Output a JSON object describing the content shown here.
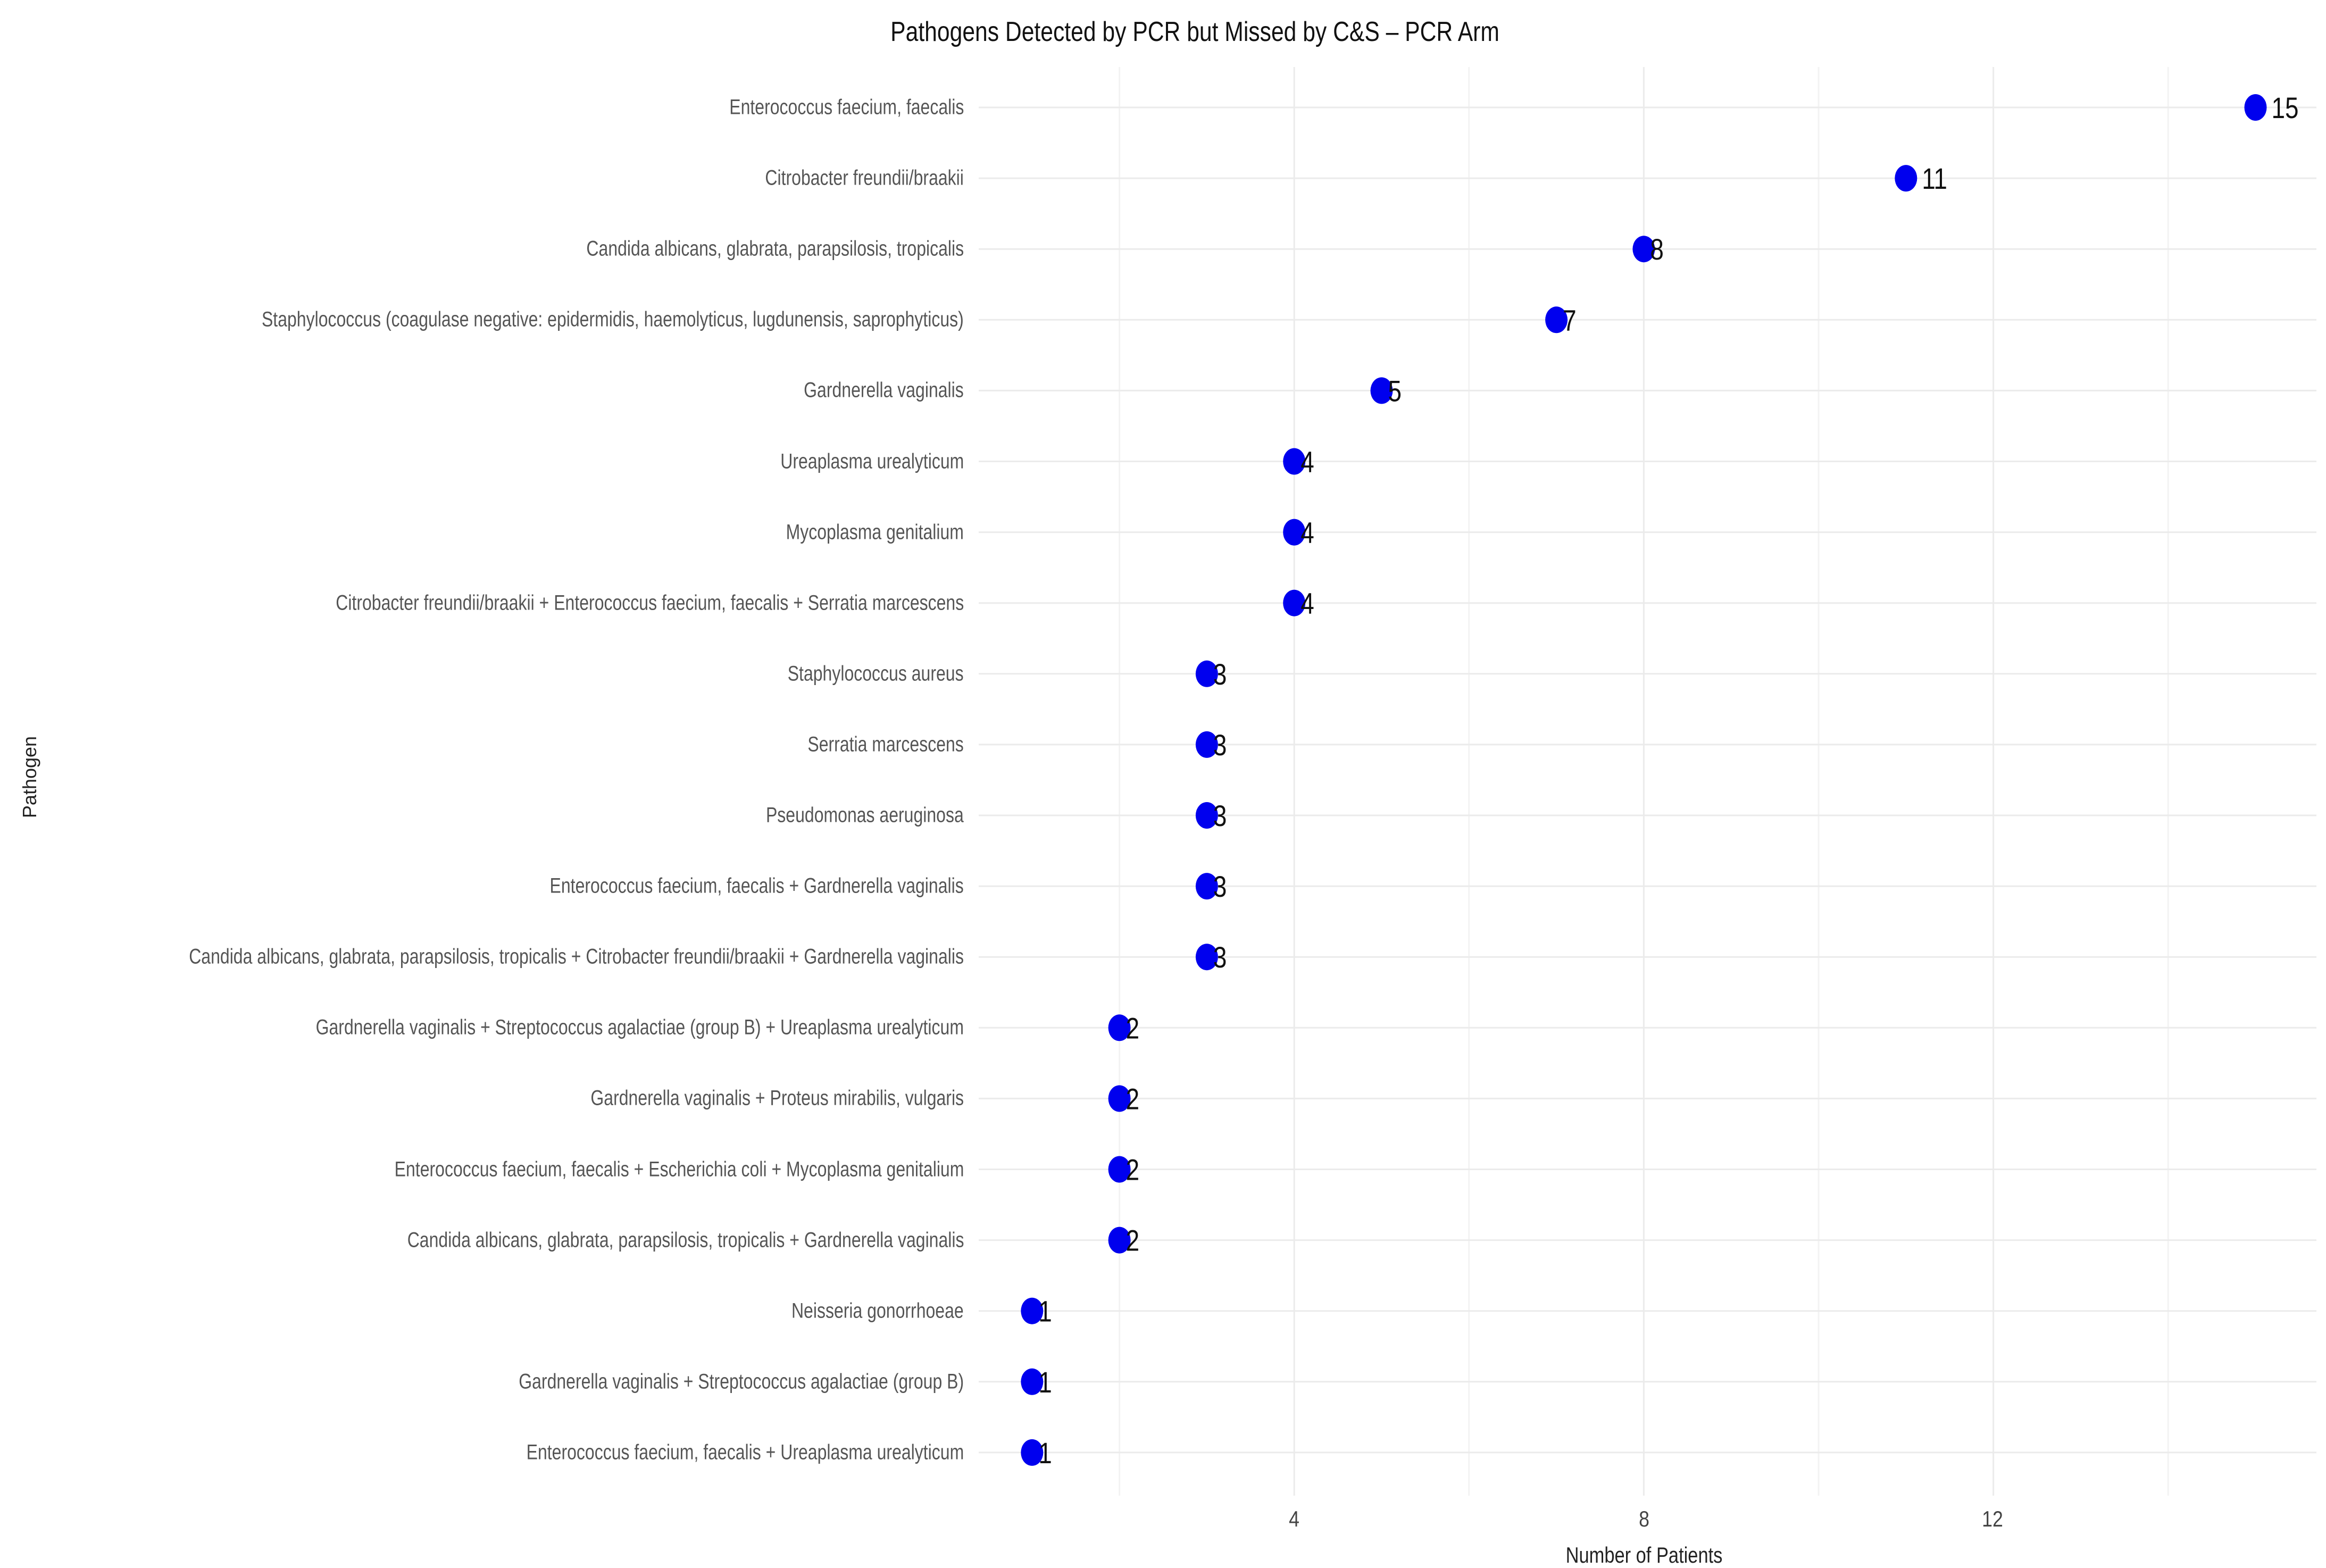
{
  "chart_data": {
    "type": "scatter",
    "subtype": "dot-plot (horizontal, sorted)",
    "title": "Pathogens Detected by PCR but Missed by C&S – PCR Arm",
    "xlabel": "Number of Patients",
    "ylabel": "Pathogen",
    "xlim": [
      1,
      15
    ],
    "x_ticks": [
      4,
      8,
      12
    ],
    "x_minor_gridlines": [
      2,
      6,
      10,
      14
    ],
    "grid": true,
    "legend": null,
    "point_color": "#0000ee",
    "categories": [
      "Enterococcus faecium, faecalis",
      "Citrobacter freundii/braakii",
      "Candida albicans, glabrata, parapsilosis, tropicalis",
      "Staphylococcus (coagulase negative: epidermidis, haemolyticus, lugdunensis, saprophyticus)",
      "Gardnerella vaginalis",
      "Ureaplasma urealyticum",
      "Mycoplasma genitalium",
      "Citrobacter freundii/braakii + Enterococcus faecium, faecalis + Serratia marcescens",
      "Staphylococcus aureus",
      "Serratia marcescens",
      "Pseudomonas aeruginosa",
      "Enterococcus faecium, faecalis + Gardnerella vaginalis",
      "Candida albicans, glabrata, parapsilosis, tropicalis + Citrobacter freundii/braakii + Gardnerella vaginalis",
      "Gardnerella vaginalis + Streptococcus agalactiae (group B) + Ureaplasma urealyticum",
      "Gardnerella vaginalis + Proteus mirabilis, vulgaris",
      "Enterococcus faecium, faecalis + Escherichia coli + Mycoplasma genitalium",
      "Candida albicans, glabrata, parapsilosis, tropicalis + Gardnerella vaginalis",
      "Neisseria gonorrhoeae",
      "Gardnerella vaginalis + Streptococcus agalactiae (group B)",
      "Enterococcus faecium, faecalis + Ureaplasma urealyticum"
    ],
    "values": [
      15,
      11,
      8,
      7,
      5,
      4,
      4,
      4,
      3,
      3,
      3,
      3,
      3,
      2,
      2,
      2,
      2,
      1,
      1,
      1
    ]
  },
  "chart": {
    "title": "Pathogens Detected by PCR but Missed by C&S – PCR Arm",
    "xlabel": "Number of Patients",
    "ylabel": "Pathogen",
    "ticks": [
      "4",
      "8",
      "12"
    ]
  }
}
